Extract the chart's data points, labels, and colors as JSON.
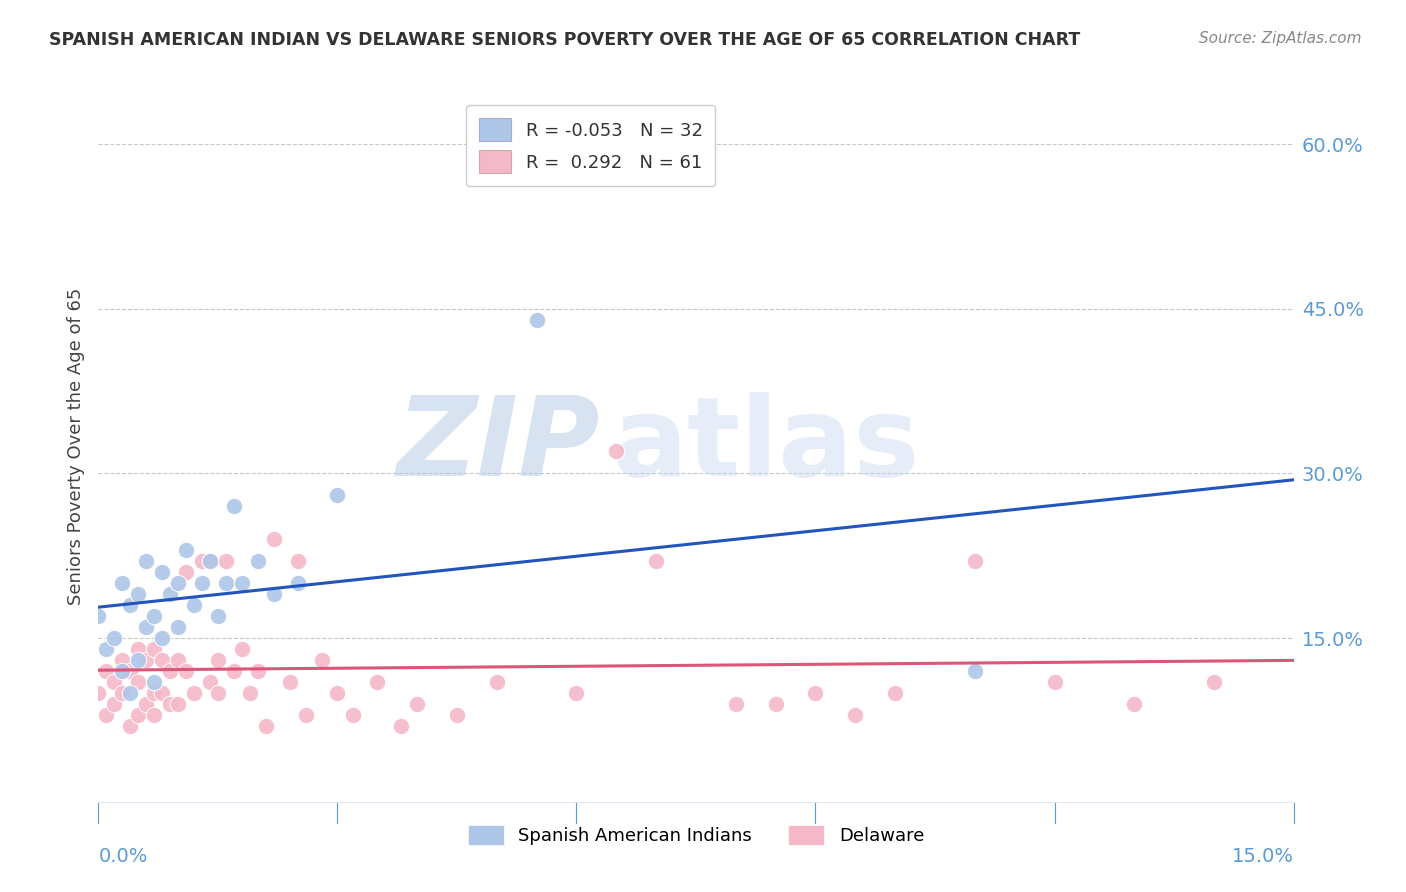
{
  "title": "SPANISH AMERICAN INDIAN VS DELAWARE SENIORS POVERTY OVER THE AGE OF 65 CORRELATION CHART",
  "source": "Source: ZipAtlas.com",
  "ylabel": "Seniors Poverty Over the Age of 65",
  "xmin": 0.0,
  "xmax": 0.15,
  "ymin": 0.0,
  "ymax": 0.65,
  "yticks": [
    0.0,
    0.15,
    0.3,
    0.45,
    0.6
  ],
  "ytick_labels": [
    "",
    "15.0%",
    "30.0%",
    "45.0%",
    "60.0%"
  ],
  "xticks": [
    0.0,
    0.03,
    0.06,
    0.09,
    0.12,
    0.15
  ],
  "blue_R": -0.053,
  "blue_N": 32,
  "pink_R": 0.292,
  "pink_N": 61,
  "legend_label_blue": "Spanish American Indians",
  "legend_label_pink": "Delaware",
  "title_color": "#333333",
  "source_color": "#888888",
  "axis_color": "#5b9bd5",
  "grid_color": "#c8c8c8",
  "blue_scatter_color": "#adc6e8",
  "pink_scatter_color": "#f5b8c8",
  "blue_line_color": "#2255bb",
  "pink_line_color": "#dd5577",
  "blue_scatter_x": [
    0.0,
    0.001,
    0.002,
    0.003,
    0.003,
    0.004,
    0.004,
    0.005,
    0.005,
    0.006,
    0.006,
    0.007,
    0.007,
    0.008,
    0.008,
    0.009,
    0.01,
    0.01,
    0.011,
    0.012,
    0.013,
    0.014,
    0.015,
    0.016,
    0.017,
    0.018,
    0.02,
    0.022,
    0.025,
    0.03,
    0.055,
    0.11
  ],
  "blue_scatter_y": [
    0.17,
    0.14,
    0.15,
    0.2,
    0.12,
    0.18,
    0.1,
    0.19,
    0.13,
    0.22,
    0.16,
    0.17,
    0.11,
    0.21,
    0.15,
    0.19,
    0.2,
    0.16,
    0.23,
    0.18,
    0.2,
    0.22,
    0.17,
    0.2,
    0.27,
    0.2,
    0.22,
    0.19,
    0.2,
    0.28,
    0.44,
    0.12
  ],
  "pink_scatter_x": [
    0.0,
    0.001,
    0.001,
    0.002,
    0.002,
    0.003,
    0.003,
    0.004,
    0.004,
    0.005,
    0.005,
    0.005,
    0.006,
    0.006,
    0.007,
    0.007,
    0.007,
    0.008,
    0.008,
    0.009,
    0.009,
    0.01,
    0.01,
    0.011,
    0.011,
    0.012,
    0.013,
    0.014,
    0.014,
    0.015,
    0.015,
    0.016,
    0.017,
    0.018,
    0.019,
    0.02,
    0.021,
    0.022,
    0.024,
    0.025,
    0.026,
    0.028,
    0.03,
    0.032,
    0.035,
    0.038,
    0.04,
    0.045,
    0.05,
    0.06,
    0.065,
    0.07,
    0.08,
    0.085,
    0.09,
    0.095,
    0.1,
    0.11,
    0.12,
    0.13,
    0.14
  ],
  "pink_scatter_y": [
    0.1,
    0.08,
    0.12,
    0.09,
    0.11,
    0.1,
    0.13,
    0.07,
    0.12,
    0.08,
    0.11,
    0.14,
    0.09,
    0.13,
    0.08,
    0.1,
    0.14,
    0.1,
    0.13,
    0.09,
    0.12,
    0.09,
    0.13,
    0.12,
    0.21,
    0.1,
    0.22,
    0.11,
    0.22,
    0.1,
    0.13,
    0.22,
    0.12,
    0.14,
    0.1,
    0.12,
    0.07,
    0.24,
    0.11,
    0.22,
    0.08,
    0.13,
    0.1,
    0.08,
    0.11,
    0.07,
    0.09,
    0.08,
    0.11,
    0.1,
    0.32,
    0.22,
    0.09,
    0.09,
    0.1,
    0.08,
    0.1,
    0.22,
    0.11,
    0.09,
    0.11
  ],
  "watermark_zip": "ZIP",
  "watermark_atlas": "atlas",
  "background_color": "#ffffff"
}
